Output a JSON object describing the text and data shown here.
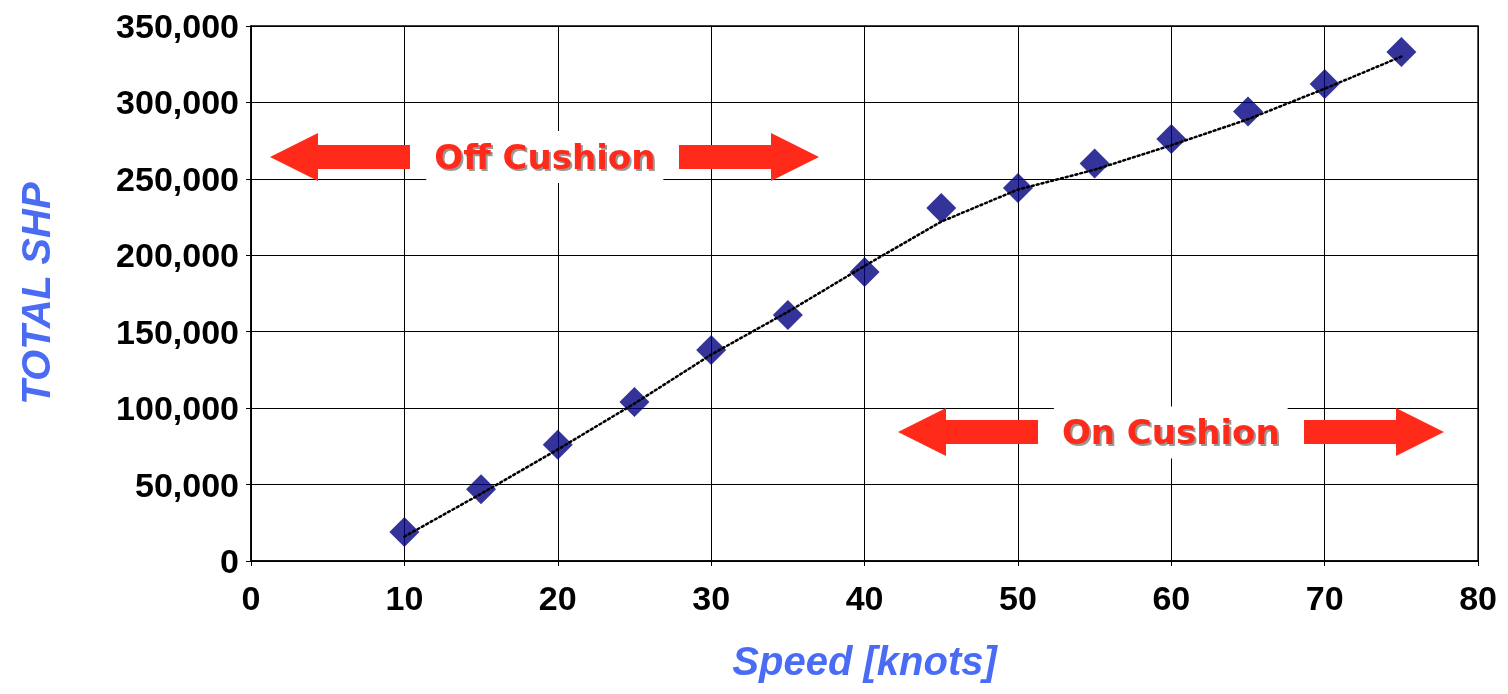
{
  "chart_data": {
    "type": "scatter",
    "xlabel": "Speed [knots]",
    "ylabel": "TOTAL SHP",
    "series": [
      {
        "color": "#000080",
        "marker": "diamond",
        "x": [
          10,
          15,
          20,
          25,
          30,
          35,
          40,
          45,
          50,
          55,
          60,
          65,
          70,
          75
        ],
        "values": [
          19000,
          47000,
          76000,
          104000,
          138000,
          161000,
          189000,
          231000,
          244000,
          260000,
          276000,
          294000,
          312000,
          333000
        ]
      },
      {
        "type": "line",
        "color": "#000000",
        "marker": "none",
        "line_style": "dotted",
        "x": [
          10,
          15,
          20,
          25,
          30,
          35,
          40,
          45,
          50,
          55,
          60,
          65,
          70,
          75
        ],
        "values": [
          16000,
          44000,
          73000,
          103000,
          135000,
          163000,
          193000,
          222000,
          243000,
          256000,
          272000,
          289000,
          309000,
          330000
        ]
      }
    ],
    "xlim": [
      0,
      80
    ],
    "xticks": [
      0,
      10,
      20,
      30,
      40,
      50,
      60,
      70,
      80
    ],
    "ylim": [
      0,
      350000
    ],
    "yticks": [
      {
        "value": 0,
        "label": "0"
      },
      {
        "value": 50000,
        "label": "50,000"
      },
      {
        "value": 100000,
        "label": "100,000"
      },
      {
        "value": 150000,
        "label": "150,000"
      },
      {
        "value": 200000,
        "label": "200,000"
      },
      {
        "value": 250000,
        "label": "250,000"
      },
      {
        "value": 300000,
        "label": "300,000"
      },
      {
        "value": 350000,
        "label": "350,000"
      }
    ],
    "grid": true,
    "annotations": [
      "Off Cushion",
      "On Cushion"
    ]
  }
}
